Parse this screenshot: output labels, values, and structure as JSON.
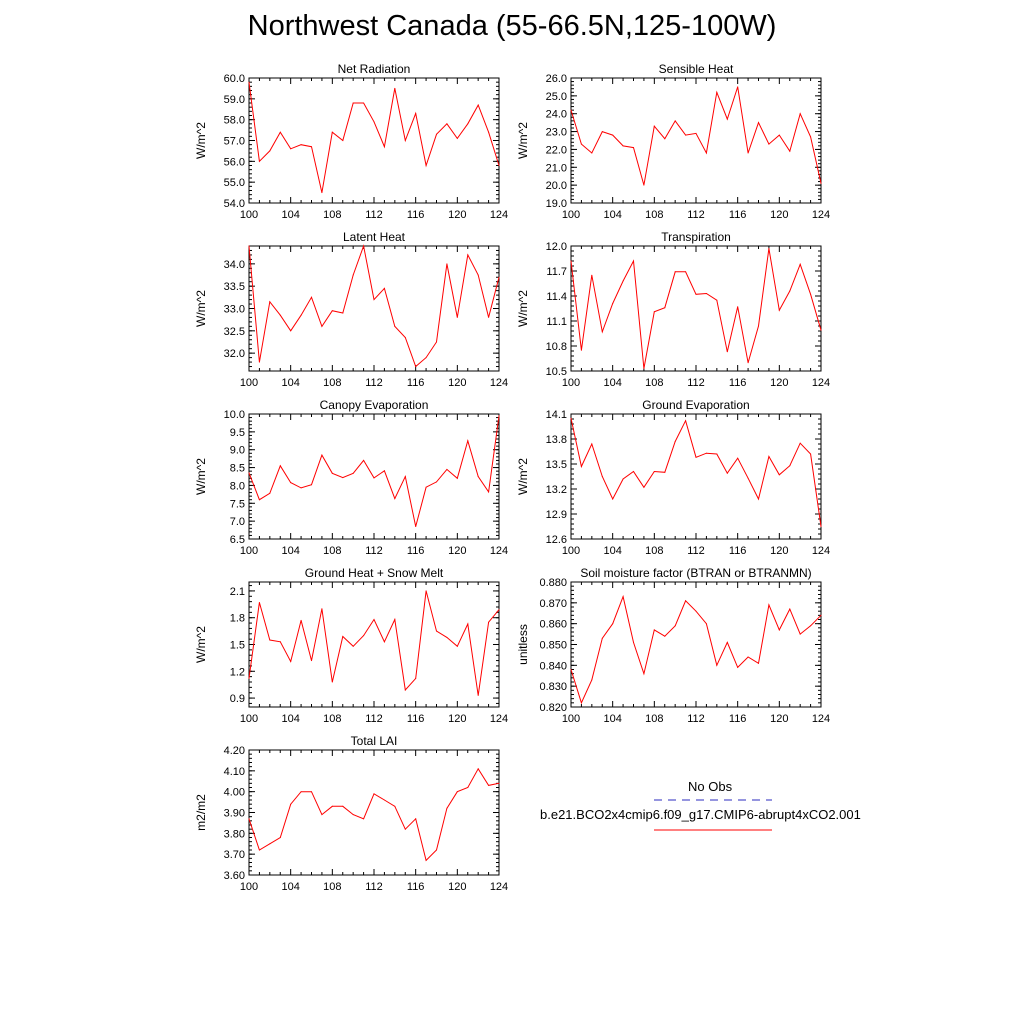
{
  "title": "Northwest Canada (55-66.5N,125-100W)",
  "colors": {
    "line": "#ff0000",
    "obs": "#2b2bbf",
    "axis": "#000000"
  },
  "legend": {
    "obs_label": "No Obs",
    "model_label": "b.e21.BCO2x4cmip6.f09_g17.CMIP6-abrupt4xCO2.001"
  },
  "chart_data": [
    {
      "type": "line",
      "title": "Net Radiation",
      "ylabel": "W/m^2",
      "xlim": [
        100,
        124
      ],
      "xticks": [
        100,
        104,
        108,
        112,
        116,
        120,
        124
      ],
      "ylim": [
        54.0,
        60.0
      ],
      "yticks": [
        "54.0",
        "55.0",
        "56.0",
        "57.0",
        "58.0",
        "59.0",
        "60.0"
      ],
      "x": [
        100,
        101,
        102,
        103,
        104,
        105,
        106,
        107,
        108,
        109,
        110,
        111,
        112,
        113,
        114,
        115,
        116,
        117,
        118,
        119,
        120,
        121,
        122,
        123,
        124
      ],
      "values": [
        59.8,
        56.0,
        56.5,
        57.4,
        56.6,
        56.8,
        56.7,
        54.5,
        57.4,
        57.0,
        58.8,
        58.8,
        57.9,
        56.7,
        59.5,
        57.0,
        58.3,
        55.8,
        57.3,
        57.8,
        57.1,
        57.8,
        58.7,
        57.4,
        55.8
      ]
    },
    {
      "type": "line",
      "title": "Sensible Heat",
      "ylabel": "W/m^2",
      "xlim": [
        100,
        124
      ],
      "xticks": [
        100,
        104,
        108,
        112,
        116,
        120,
        124
      ],
      "ylim": [
        19.0,
        26.0
      ],
      "yticks": [
        "19.0",
        "20.0",
        "21.0",
        "22.0",
        "23.0",
        "24.0",
        "25.0",
        "26.0"
      ],
      "x": [
        100,
        101,
        102,
        103,
        104,
        105,
        106,
        107,
        108,
        109,
        110,
        111,
        112,
        113,
        114,
        115,
        116,
        117,
        118,
        119,
        120,
        121,
        122,
        123,
        124
      ],
      "values": [
        24.2,
        22.3,
        21.8,
        23.0,
        22.8,
        22.2,
        22.1,
        20.0,
        23.3,
        22.6,
        23.6,
        22.8,
        22.9,
        21.8,
        25.2,
        23.7,
        25.5,
        21.8,
        23.5,
        22.3,
        22.8,
        21.9,
        24.0,
        22.7,
        20.1
      ]
    },
    {
      "type": "line",
      "title": "Latent Heat",
      "ylabel": "W/m^2",
      "xlim": [
        100,
        124
      ],
      "xticks": [
        100,
        104,
        108,
        112,
        116,
        120,
        124
      ],
      "ylim": [
        31.6,
        34.4
      ],
      "yticks": [
        "32.0",
        "32.5",
        "33.0",
        "33.5",
        "34.0"
      ],
      "ytick_values": [
        32.0,
        32.5,
        33.0,
        33.5,
        34.0
      ],
      "x": [
        100,
        101,
        102,
        103,
        104,
        105,
        106,
        107,
        108,
        109,
        110,
        111,
        112,
        113,
        114,
        115,
        116,
        117,
        118,
        119,
        120,
        121,
        122,
        123,
        124
      ],
      "values": [
        34.4,
        31.8,
        33.15,
        32.85,
        32.5,
        32.85,
        33.25,
        32.6,
        32.95,
        32.9,
        33.75,
        34.4,
        33.2,
        33.45,
        32.6,
        32.35,
        31.7,
        31.9,
        32.25,
        34.0,
        32.8,
        34.2,
        33.75,
        32.8,
        33.7
      ]
    },
    {
      "type": "line",
      "title": "Transpiration",
      "ylabel": "W/m^2",
      "xlim": [
        100,
        124
      ],
      "xticks": [
        100,
        104,
        108,
        112,
        116,
        120,
        124
      ],
      "ylim": [
        10.5,
        12.0
      ],
      "yticks": [
        "10.5",
        "10.8",
        "11.1",
        "11.4",
        "11.7",
        "12.0"
      ],
      "x": [
        100,
        101,
        102,
        103,
        104,
        105,
        106,
        107,
        108,
        109,
        110,
        111,
        112,
        113,
        114,
        115,
        116,
        117,
        118,
        119,
        120,
        121,
        122,
        123,
        124
      ],
      "values": [
        11.82,
        10.75,
        11.65,
        10.97,
        11.31,
        11.58,
        11.82,
        10.53,
        11.21,
        11.26,
        11.69,
        11.69,
        11.42,
        11.43,
        11.35,
        10.73,
        11.27,
        10.6,
        11.04,
        11.97,
        11.23,
        11.46,
        11.78,
        11.42,
        10.99
      ]
    },
    {
      "type": "line",
      "title": "Canopy Evaporation",
      "ylabel": "W/m^2",
      "xlim": [
        100,
        124
      ],
      "xticks": [
        100,
        104,
        108,
        112,
        116,
        120,
        124
      ],
      "ylim": [
        6.5,
        10.0
      ],
      "yticks": [
        "6.5",
        "7.0",
        "7.5",
        "8.0",
        "8.5",
        "9.0",
        "9.5",
        "10.0"
      ],
      "x": [
        100,
        101,
        102,
        103,
        104,
        105,
        106,
        107,
        108,
        109,
        110,
        111,
        112,
        113,
        114,
        115,
        116,
        117,
        118,
        119,
        120,
        121,
        122,
        123,
        124
      ],
      "values": [
        8.35,
        7.6,
        7.78,
        8.55,
        8.08,
        7.93,
        8.02,
        8.85,
        8.34,
        8.22,
        8.34,
        8.7,
        8.21,
        8.41,
        7.63,
        8.25,
        6.85,
        7.95,
        8.1,
        8.45,
        8.2,
        9.25,
        8.25,
        7.82,
        9.95
      ]
    },
    {
      "type": "line",
      "title": "Ground Evaporation",
      "ylabel": "W/m^2",
      "xlim": [
        100,
        124
      ],
      "xticks": [
        100,
        104,
        108,
        112,
        116,
        120,
        124
      ],
      "ylim": [
        12.6,
        14.1
      ],
      "yticks": [
        "12.6",
        "12.9",
        "13.2",
        "13.5",
        "13.8",
        "14.1"
      ],
      "x": [
        100,
        101,
        102,
        103,
        104,
        105,
        106,
        107,
        108,
        109,
        110,
        111,
        112,
        113,
        114,
        115,
        116,
        117,
        118,
        119,
        120,
        121,
        122,
        123,
        124
      ],
      "values": [
        14.05,
        13.47,
        13.74,
        13.35,
        13.08,
        13.32,
        13.41,
        13.22,
        13.41,
        13.4,
        13.77,
        14.02,
        13.58,
        13.63,
        13.62,
        13.39,
        13.57,
        13.33,
        13.08,
        13.59,
        13.37,
        13.48,
        13.75,
        13.62,
        12.75
      ]
    },
    {
      "type": "line",
      "title": "Ground Heat + Snow Melt",
      "ylabel": "W/m^2",
      "xlim": [
        100,
        124
      ],
      "xticks": [
        100,
        104,
        108,
        112,
        116,
        120,
        124
      ],
      "ylim": [
        0.8,
        2.2
      ],
      "yticks": [
        "0.9",
        "1.2",
        "1.5",
        "1.8",
        "2.1"
      ],
      "ytick_values": [
        0.9,
        1.2,
        1.5,
        1.8,
        2.1
      ],
      "x": [
        100,
        101,
        102,
        103,
        104,
        105,
        106,
        107,
        108,
        109,
        110,
        111,
        112,
        113,
        114,
        115,
        116,
        117,
        118,
        119,
        120,
        121,
        122,
        123,
        124
      ],
      "values": [
        1.12,
        1.97,
        1.55,
        1.53,
        1.31,
        1.77,
        1.32,
        1.9,
        1.08,
        1.59,
        1.48,
        1.6,
        1.78,
        1.53,
        1.78,
        0.99,
        1.12,
        2.1,
        1.65,
        1.58,
        1.48,
        1.73,
        0.93,
        1.75,
        1.89
      ]
    },
    {
      "type": "line",
      "title": "Soil moisture factor (BTRAN or BTRANMN)",
      "ylabel": "unitless",
      "xlim": [
        100,
        124
      ],
      "xticks": [
        100,
        104,
        108,
        112,
        116,
        120,
        124
      ],
      "ylim": [
        0.82,
        0.88
      ],
      "yticks": [
        "0.820",
        "0.830",
        "0.840",
        "0.850",
        "0.860",
        "0.870",
        "0.880"
      ],
      "x": [
        100,
        101,
        102,
        103,
        104,
        105,
        106,
        107,
        108,
        109,
        110,
        111,
        112,
        113,
        114,
        115,
        116,
        117,
        118,
        119,
        120,
        121,
        122,
        123,
        124
      ],
      "values": [
        0.838,
        0.822,
        0.833,
        0.853,
        0.86,
        0.873,
        0.851,
        0.836,
        0.857,
        0.854,
        0.859,
        0.871,
        0.866,
        0.86,
        0.84,
        0.851,
        0.839,
        0.844,
        0.841,
        0.869,
        0.857,
        0.867,
        0.855,
        0.859,
        0.864
      ]
    },
    {
      "type": "line",
      "title": "Total LAI",
      "ylabel": "m2/m2",
      "xlim": [
        100,
        124
      ],
      "xticks": [
        100,
        104,
        108,
        112,
        116,
        120,
        124
      ],
      "ylim": [
        3.6,
        4.2
      ],
      "yticks": [
        "3.60",
        "3.70",
        "3.80",
        "3.90",
        "4.00",
        "4.10",
        "4.20"
      ],
      "x": [
        100,
        101,
        102,
        103,
        104,
        105,
        106,
        107,
        108,
        109,
        110,
        111,
        112,
        113,
        114,
        115,
        116,
        117,
        118,
        119,
        120,
        121,
        122,
        123,
        124
      ],
      "values": [
        3.87,
        3.72,
        3.75,
        3.78,
        3.94,
        4.0,
        4.0,
        3.89,
        3.93,
        3.93,
        3.89,
        3.87,
        3.99,
        3.96,
        3.93,
        3.82,
        3.87,
        3.67,
        3.72,
        3.92,
        4.0,
        4.02,
        4.11,
        4.03,
        4.04
      ]
    }
  ]
}
